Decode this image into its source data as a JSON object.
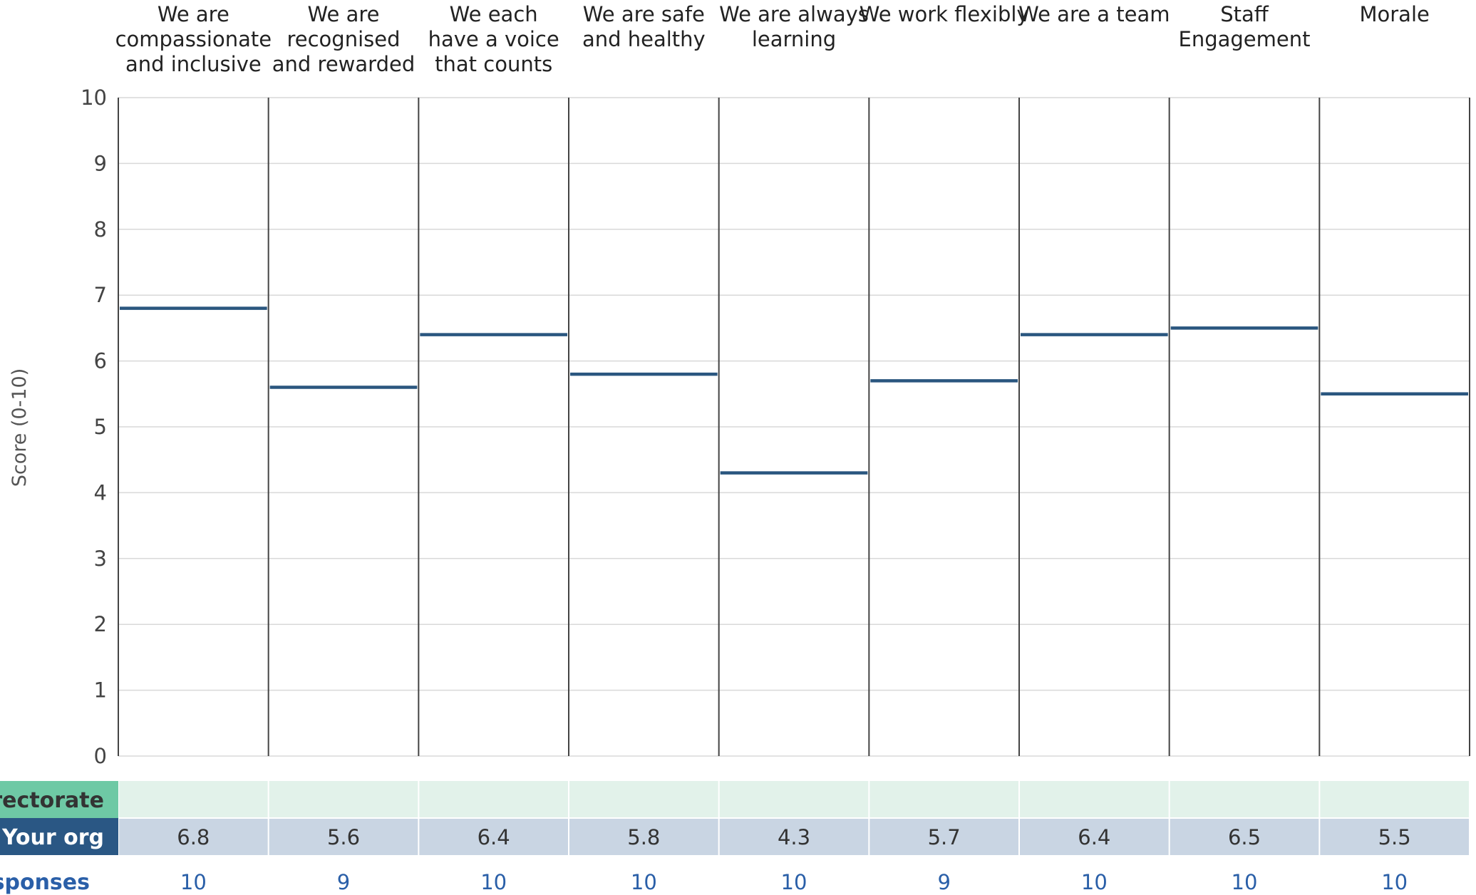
{
  "colors": {
    "level_line": "#2a567f",
    "directorate_label_bg": "#6ec9a5",
    "directorate_row_bg": "#e2f2ea",
    "org_label_bg": "#2a5784",
    "org_row_bg": "#c9d5e3",
    "responses_text": "#2a5fa8",
    "gridline": "#d9d9d9",
    "divider": "#444444"
  },
  "chart_data": {
    "type": "bar",
    "ylabel": "Score (0-10)",
    "ylim": [
      0,
      10
    ],
    "yticks": [
      0,
      1,
      2,
      3,
      4,
      5,
      6,
      7,
      8,
      9,
      10
    ],
    "grid": true,
    "categories": [
      [
        "We are",
        "compassionate",
        "and inclusive"
      ],
      [
        "We are",
        "recognised",
        "and rewarded"
      ],
      [
        "We each",
        "have a voice",
        "that counts"
      ],
      [
        "We are safe",
        "and healthy"
      ],
      [
        "We are always",
        "learning"
      ],
      [
        "We work flexibly"
      ],
      [
        "We are a team"
      ],
      [
        "Staff",
        "Engagement"
      ],
      [
        "Morale"
      ]
    ],
    "series": [
      {
        "name": "Your org",
        "values": [
          6.8,
          5.6,
          6.4,
          5.8,
          4.3,
          5.7,
          6.4,
          6.5,
          5.5
        ]
      }
    ]
  },
  "table": {
    "rows": [
      {
        "label": "Directorate",
        "values": [
          "",
          "",
          "",
          "",
          "",
          "",
          "",
          "",
          ""
        ]
      },
      {
        "label": "Your org",
        "values": [
          "6.8",
          "5.6",
          "6.4",
          "5.8",
          "4.3",
          "5.7",
          "6.4",
          "6.5",
          "5.5"
        ]
      },
      {
        "label": "Responses",
        "values": [
          "10",
          "9",
          "10",
          "10",
          "10",
          "9",
          "10",
          "10",
          "10"
        ]
      }
    ]
  }
}
